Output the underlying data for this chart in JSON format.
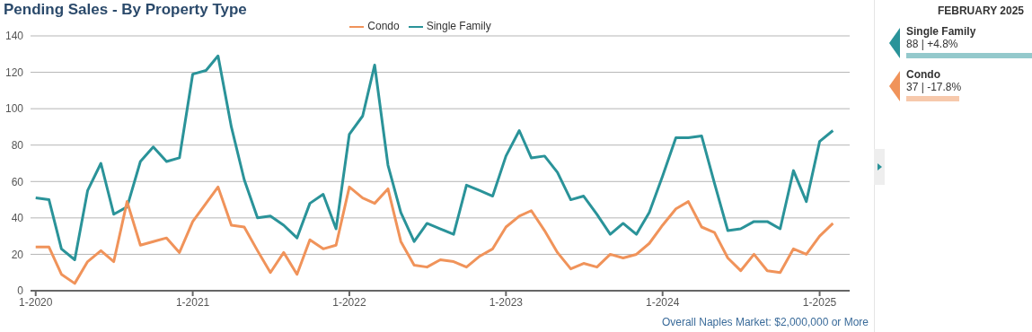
{
  "chart_data": {
    "type": "line",
    "title": "Pending Sales - By Property Type",
    "x": [
      "2020-01",
      "2020-02",
      "2020-03",
      "2020-04",
      "2020-05",
      "2020-06",
      "2020-07",
      "2020-08",
      "2020-09",
      "2020-10",
      "2020-11",
      "2020-12",
      "2021-01",
      "2021-02",
      "2021-03",
      "2021-04",
      "2021-05",
      "2021-06",
      "2021-07",
      "2021-08",
      "2021-09",
      "2021-10",
      "2021-11",
      "2021-12",
      "2022-01",
      "2022-02",
      "2022-03",
      "2022-04",
      "2022-05",
      "2022-06",
      "2022-07",
      "2022-08",
      "2022-09",
      "2022-10",
      "2022-11",
      "2022-12",
      "2023-01",
      "2023-02",
      "2023-03",
      "2023-04",
      "2023-05",
      "2023-06",
      "2023-07",
      "2023-08",
      "2023-09",
      "2023-10",
      "2023-11",
      "2023-12",
      "2024-01",
      "2024-02",
      "2024-03",
      "2024-04",
      "2024-05",
      "2024-06",
      "2024-07",
      "2024-08",
      "2024-09",
      "2024-10",
      "2024-11",
      "2024-12",
      "2025-01",
      "2025-02"
    ],
    "series": [
      {
        "name": "Single Family",
        "color": "#2a9399",
        "values": [
          51,
          50,
          23,
          17,
          55,
          70,
          42,
          46,
          71,
          79,
          71,
          73,
          119,
          121,
          129,
          90,
          61,
          40,
          41,
          36,
          29,
          48,
          53,
          34,
          86,
          96,
          124,
          69,
          43,
          27,
          37,
          34,
          31,
          58,
          55,
          52,
          74,
          88,
          73,
          74,
          65,
          50,
          52,
          42,
          31,
          37,
          31,
          43,
          63,
          84,
          84,
          85,
          59,
          33,
          34,
          38,
          38,
          34,
          66,
          49,
          82,
          88
        ]
      },
      {
        "name": "Condo",
        "color": "#f0935a",
        "values": [
          24,
          24,
          9,
          4,
          16,
          22,
          16,
          49,
          25,
          27,
          29,
          21,
          38,
          48,
          57,
          36,
          35,
          22,
          10,
          21,
          9,
          28,
          23,
          25,
          57,
          51,
          48,
          56,
          27,
          14,
          13,
          17,
          16,
          13,
          19,
          23,
          35,
          41,
          44,
          33,
          21,
          12,
          15,
          13,
          20,
          18,
          20,
          26,
          36,
          45,
          49,
          35,
          32,
          18,
          11,
          20,
          11,
          10,
          23,
          20,
          30,
          37
        ]
      }
    ],
    "xlim": [
      "2019-12-20",
      "2025-03-12"
    ],
    "xticks": [
      {
        "value": "2020-01",
        "label": "1-2020"
      },
      {
        "value": "2021-01",
        "label": "1-2021"
      },
      {
        "value": "2022-01",
        "label": "1-2022"
      },
      {
        "value": "2023-01",
        "label": "1-2023"
      },
      {
        "value": "2024-01",
        "label": "1-2024"
      },
      {
        "value": "2025-01",
        "label": "1-2025"
      }
    ],
    "ylim": [
      0,
      140
    ],
    "yticks": [
      0,
      20,
      40,
      60,
      80,
      100,
      120,
      140
    ],
    "grid": "y",
    "legend": "top",
    "marker": "none",
    "line_style": "solid",
    "annotations": [
      "FEBRUARY 2025",
      "88 | +4.8%",
      "37 | -17.8%",
      "Overall Naples Market: $2,000,000 or More"
    ]
  }
}
